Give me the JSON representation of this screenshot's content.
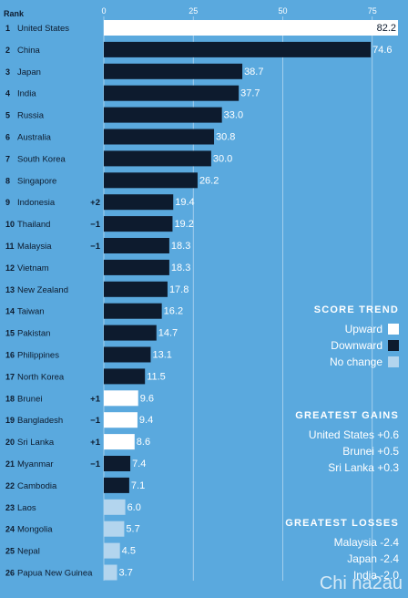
{
  "chart_data": {
    "type": "bar",
    "orientation": "horizontal",
    "rank_header": "Rank",
    "xlim": [
      0,
      82.2
    ],
    "xticks": [
      0,
      25,
      50,
      75
    ],
    "rows": [
      {
        "rank": "1",
        "name": "United States",
        "change": "",
        "value": 82.2,
        "trend": "up"
      },
      {
        "rank": "2",
        "name": "China",
        "change": "",
        "value": 74.6,
        "trend": "down"
      },
      {
        "rank": "3",
        "name": "Japan",
        "change": "",
        "value": 38.7,
        "trend": "down"
      },
      {
        "rank": "4",
        "name": "India",
        "change": "",
        "value": 37.7,
        "trend": "down"
      },
      {
        "rank": "5",
        "name": "Russia",
        "change": "",
        "value": 33.0,
        "trend": "down"
      },
      {
        "rank": "6",
        "name": "Australia",
        "change": "",
        "value": 30.8,
        "trend": "down"
      },
      {
        "rank": "7",
        "name": "South Korea",
        "change": "",
        "value": 30.0,
        "trend": "down"
      },
      {
        "rank": "8",
        "name": "Singapore",
        "change": "",
        "value": 26.2,
        "trend": "down"
      },
      {
        "rank": "9",
        "name": "Indonesia",
        "change": "+2",
        "value": 19.4,
        "trend": "down"
      },
      {
        "rank": "10",
        "name": "Thailand",
        "change": "−1",
        "value": 19.2,
        "trend": "down"
      },
      {
        "rank": "11",
        "name": "Malaysia",
        "change": "−1",
        "value": 18.3,
        "trend": "down"
      },
      {
        "rank": "12",
        "name": "Vietnam",
        "change": "",
        "value": 18.3,
        "trend": "down"
      },
      {
        "rank": "13",
        "name": "New Zealand",
        "change": "",
        "value": 17.8,
        "trend": "down"
      },
      {
        "rank": "14",
        "name": "Taiwan",
        "change": "",
        "value": 16.2,
        "trend": "down"
      },
      {
        "rank": "15",
        "name": "Pakistan",
        "change": "",
        "value": 14.7,
        "trend": "down"
      },
      {
        "rank": "16",
        "name": "Philippines",
        "change": "",
        "value": 13.1,
        "trend": "down"
      },
      {
        "rank": "17",
        "name": "North Korea",
        "change": "",
        "value": 11.5,
        "trend": "down"
      },
      {
        "rank": "18",
        "name": "Brunei",
        "change": "+1",
        "value": 9.6,
        "trend": "up"
      },
      {
        "rank": "19",
        "name": "Bangladesh",
        "change": "−1",
        "value": 9.4,
        "trend": "up"
      },
      {
        "rank": "20",
        "name": "Sri Lanka",
        "change": "+1",
        "value": 8.6,
        "trend": "up"
      },
      {
        "rank": "21",
        "name": "Myanmar",
        "change": "−1",
        "value": 7.4,
        "trend": "down"
      },
      {
        "rank": "22",
        "name": "Cambodia",
        "change": "",
        "value": 7.1,
        "trend": "down"
      },
      {
        "rank": "23",
        "name": "Laos",
        "change": "",
        "value": 6.0,
        "trend": "none"
      },
      {
        "rank": "24",
        "name": "Mongolia",
        "change": "",
        "value": 5.7,
        "trend": "none"
      },
      {
        "rank": "25",
        "name": "Nepal",
        "change": "",
        "value": 4.5,
        "trend": "none"
      },
      {
        "rank": "26",
        "name": "Papua New Guinea",
        "change": "",
        "value": 3.7,
        "trend": "none"
      }
    ],
    "colors": {
      "up": "#ffffff",
      "down": "#0d1b2e",
      "none": "#b3d5ee",
      "background": "#5aa9de",
      "label_dark": "#0d1b2e",
      "value_light": "#ffffff"
    }
  },
  "legend": {
    "score_trend": {
      "title": "SCORE TREND",
      "items": [
        {
          "label": "Upward",
          "color": "#ffffff"
        },
        {
          "label": "Downward",
          "color": "#0d1b2e"
        },
        {
          "label": "No change",
          "color": "#b3d5ee"
        }
      ]
    },
    "gains": {
      "title": "GREATEST GAINS",
      "items": [
        "United States  +0.6",
        "Brunei  +0.5",
        "Sri Lanka  +0.3"
      ]
    },
    "losses": {
      "title": "GREATEST LOSSES",
      "items": [
        "Malaysia  -2.4",
        "Japan  -2.4",
        "India  -2.0"
      ]
    }
  },
  "watermark": "Chi na2au"
}
